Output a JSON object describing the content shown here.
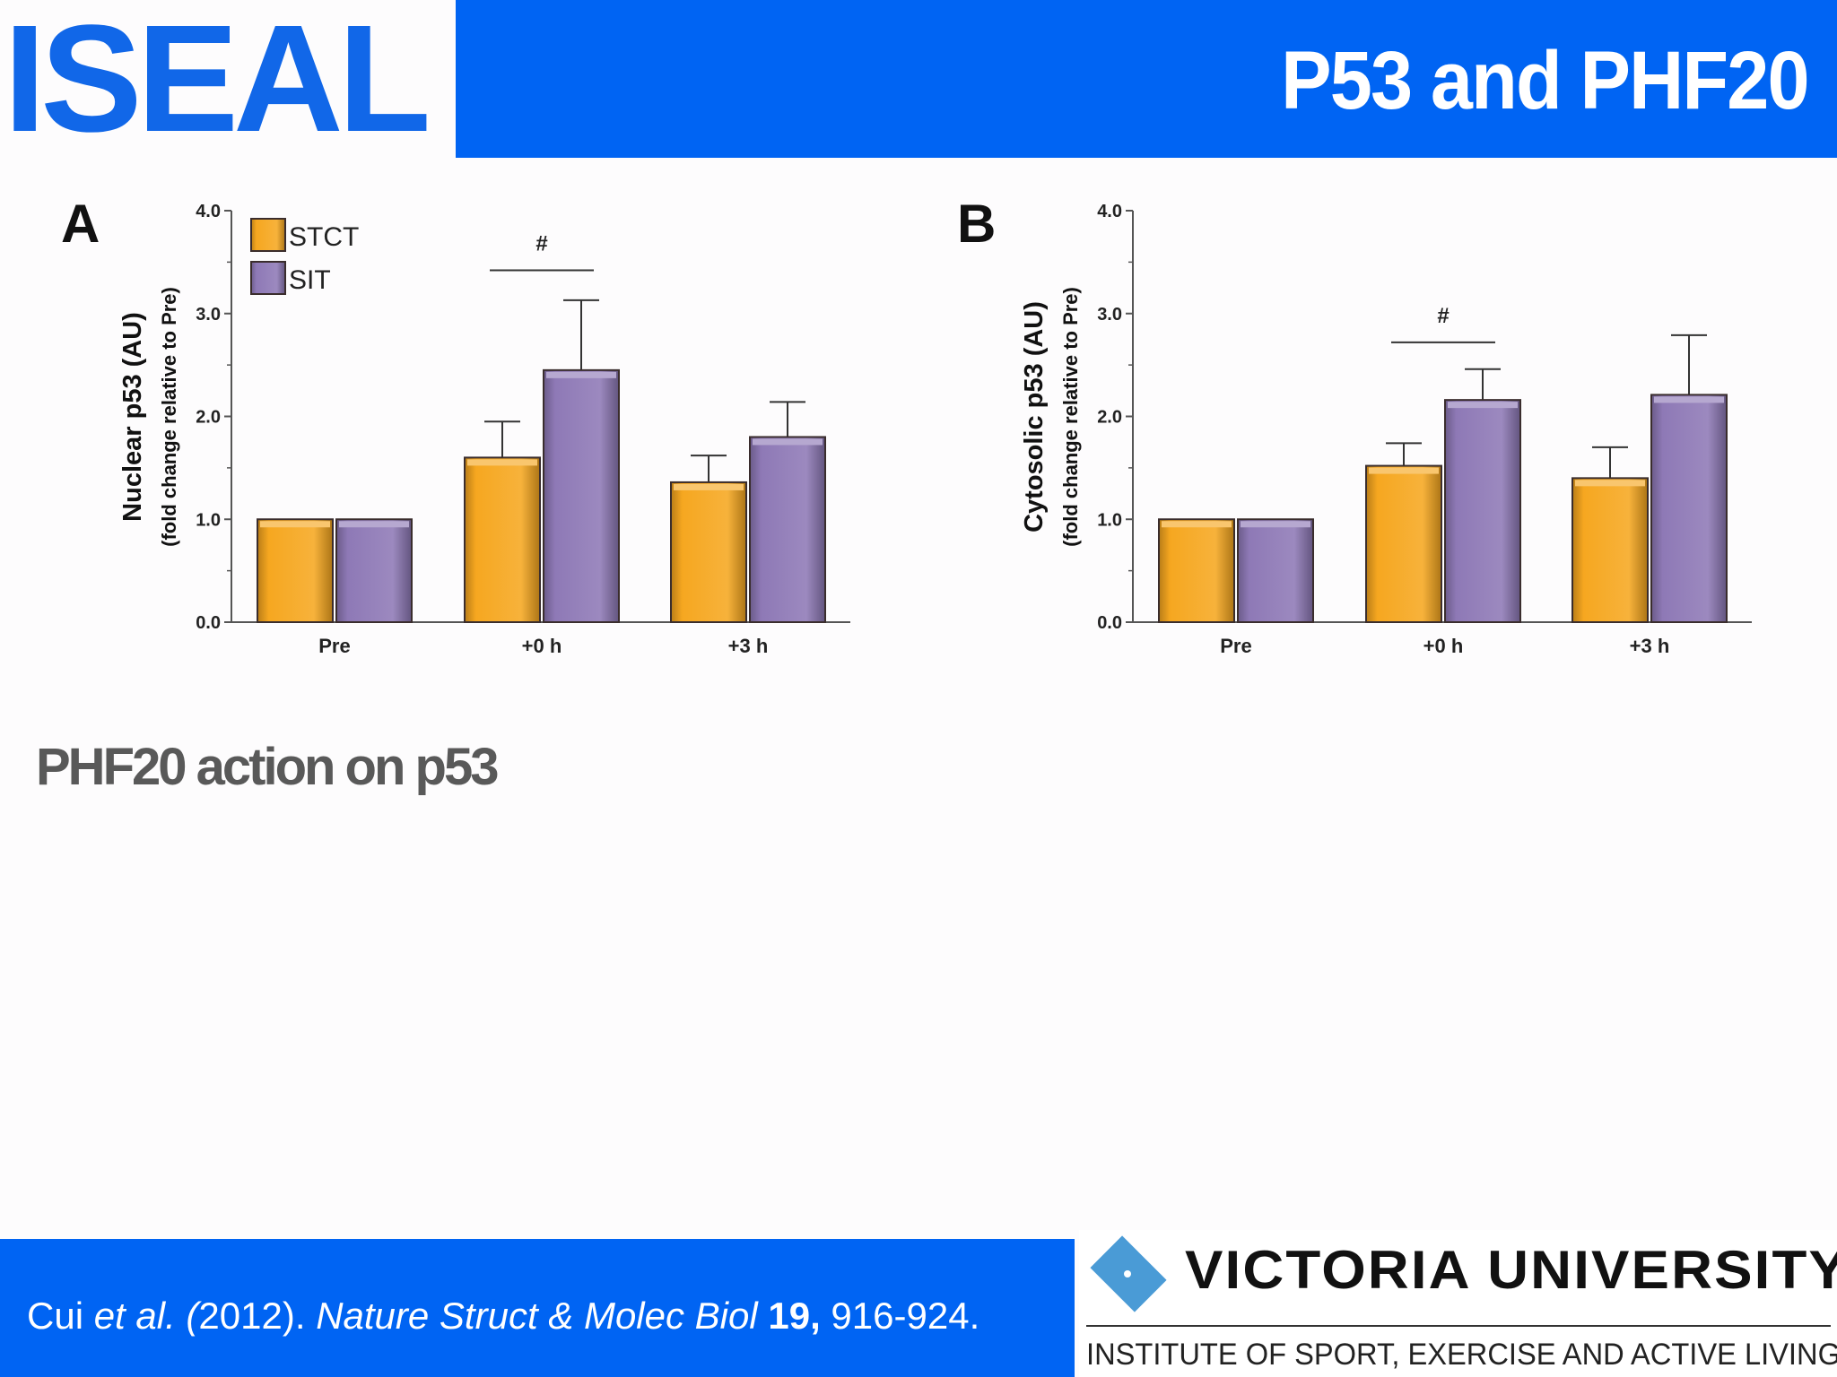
{
  "header": {
    "logo": "ISEAL",
    "title": "P53 and PHF20"
  },
  "subtitle": "PHF20 action on p53",
  "footer": {
    "citation": {
      "author": "Cui ",
      "etal": "et al. (",
      "year": "2012). ",
      "journal": "Nature Struct & Molec Biol",
      "volume": " 19,",
      "pages": " 916-924."
    },
    "university": "VICTORIA UNIVERSITY",
    "institute": "INSTITUTE OF SPORT, EXERCISE AND ACTIVE LIVING"
  },
  "colors": {
    "stct": "#f6a720",
    "sit": "#8e79b6",
    "header_blue": "#0064f3"
  },
  "chart_data": [
    {
      "type": "bar",
      "panel": "A",
      "ylabel": "Nuclear p53 (AU)",
      "ylabel2": "(fold change relative to Pre)",
      "categories": [
        "Pre",
        "+0 h",
        "+3 h"
      ],
      "ylim": [
        0,
        4
      ],
      "yticks": [
        "0.0",
        "1.0",
        "2.0",
        "3.0",
        "4.0"
      ],
      "legend": "top-left",
      "series": [
        {
          "name": "STCT",
          "values": [
            1.0,
            1.6,
            1.36
          ],
          "errors": [
            0,
            0.35,
            0.26
          ]
        },
        {
          "name": "SIT",
          "values": [
            1.0,
            2.45,
            1.8
          ],
          "errors": [
            0,
            0.68,
            0.34
          ]
        }
      ],
      "annotations": [
        {
          "text": "#",
          "category": "+0 h",
          "y": 3.42
        }
      ]
    },
    {
      "type": "bar",
      "panel": "B",
      "ylabel": "Cytosolic p53 (AU)",
      "ylabel2": "(fold change relative to Pre)",
      "categories": [
        "Pre",
        "+0 h",
        "+3 h"
      ],
      "ylim": [
        0,
        4
      ],
      "yticks": [
        "0.0",
        "1.0",
        "2.0",
        "3.0",
        "4.0"
      ],
      "legend": "",
      "series": [
        {
          "name": "STCT",
          "values": [
            1.0,
            1.52,
            1.4
          ],
          "errors": [
            0,
            0.22,
            0.3
          ]
        },
        {
          "name": "SIT",
          "values": [
            1.0,
            2.16,
            2.21
          ],
          "errors": [
            0,
            0.3,
            0.58
          ]
        }
      ],
      "annotations": [
        {
          "text": "#",
          "category": "+0 h",
          "y": 2.72
        }
      ]
    }
  ]
}
